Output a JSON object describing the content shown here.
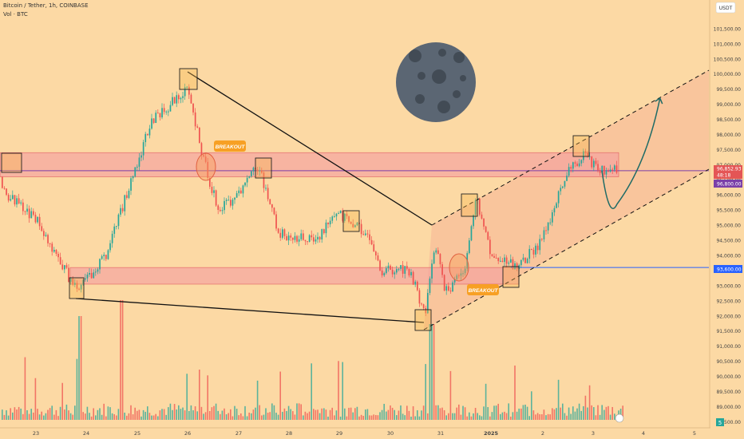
{
  "header": {
    "symbol_line": "Bitcoin / Tether, 1h, COINBASE",
    "volume_line": "Vol · BTC"
  },
  "axis": {
    "currency_button": "USDT",
    "volume_tag": "5",
    "y_ticks": [
      "101,500.00",
      "101,000.00",
      "100,500.00",
      "100,000.00",
      "99,500.00",
      "99,000.00",
      "98,500.00",
      "98,000.00",
      "97,500.00",
      "97,000.00",
      "96,500.00",
      "96,000.00",
      "95,500.00",
      "95,000.00",
      "94,500.00",
      "94,000.00",
      "93,500.00",
      "93,000.00",
      "92,500.00",
      "92,000.00",
      "91,500.00",
      "91,000.00",
      "90,500.00",
      "90,000.00",
      "89,500.00",
      "89,000.00",
      "88,500.00"
    ],
    "x_ticks": [
      "23",
      "24",
      "25",
      "26",
      "27",
      "28",
      "29",
      "30",
      "31",
      "2025",
      "2",
      "3",
      "4",
      "5"
    ]
  },
  "price_labels": {
    "last_price": "96,852.93",
    "countdown": "48:18",
    "level_high": "96,800.00",
    "level_low": "93,600.00"
  },
  "annotations": {
    "breakout_1": "BREAKOUT",
    "breakout_2": "BREAKOUT"
  },
  "colors": {
    "background": "#fcd9a4",
    "up": "#26a69a",
    "down": "#ef5350",
    "resistance_zone": "#f4a0a0",
    "resistance_line": "#7b3fa8",
    "support_line": "#2962ff",
    "breakout_label": "#f7a024",
    "moon": "#5b6673"
  },
  "chart_data": {
    "type": "candlestick",
    "title": "Bitcoin / Tether, 1h, COINBASE",
    "price_range": [
      88100,
      102000
    ],
    "date_axis": [
      "23",
      "24",
      "25",
      "26",
      "27",
      "28",
      "29",
      "30",
      "31",
      "2025",
      "2",
      "3",
      "4",
      "5"
    ],
    "horizontal_levels": [
      96800,
      93600
    ],
    "zones": [
      {
        "name": "upper zone",
        "from": 96600,
        "to": 97400
      },
      {
        "name": "lower zone",
        "from": 93050,
        "to": 93600
      }
    ],
    "path_keypoints": [
      {
        "date": "22",
        "price": 96600
      },
      {
        "date": "23",
        "price": 95200
      },
      {
        "date": "23.8",
        "price": 92800
      },
      {
        "date": "24.4",
        "price": 94100
      },
      {
        "date": "25",
        "price": 97100
      },
      {
        "date": "25.3",
        "price": 98500
      },
      {
        "date": "26",
        "price": 99500
      },
      {
        "date": "26.3",
        "price": 97200
      },
      {
        "date": "26.6",
        "price": 95500
      },
      {
        "date": "27",
        "price": 96000
      },
      {
        "date": "27.4",
        "price": 97000
      },
      {
        "date": "27.8",
        "price": 94700
      },
      {
        "date": "28.5",
        "price": 94500
      },
      {
        "date": "29",
        "price": 95400
      },
      {
        "date": "29.5",
        "price": 94800
      },
      {
        "date": "29.8",
        "price": 93500
      },
      {
        "date": "30.4",
        "price": 93500
      },
      {
        "date": "30.7",
        "price": 92000
      },
      {
        "date": "30.9",
        "price": 94500
      },
      {
        "date": "31.1",
        "price": 92800
      },
      {
        "date": "31.5",
        "price": 93500
      },
      {
        "date": "31.7",
        "price": 96000
      },
      {
        "date": "1.0",
        "price": 94000
      },
      {
        "date": "1.5",
        "price": 93600
      },
      {
        "date": "2.0",
        "price": 94500
      },
      {
        "date": "2.5",
        "price": 96800
      },
      {
        "date": "2.8",
        "price": 97300
      },
      {
        "date": "3.2",
        "price": 96800
      }
    ],
    "projection": [
      {
        "date": "3.2",
        "price": 96800
      },
      {
        "date": "3.5",
        "price": 95700
      },
      {
        "date": "4.0",
        "price": 97000
      },
      {
        "date": "4.35",
        "price": 99200
      }
    ]
  }
}
